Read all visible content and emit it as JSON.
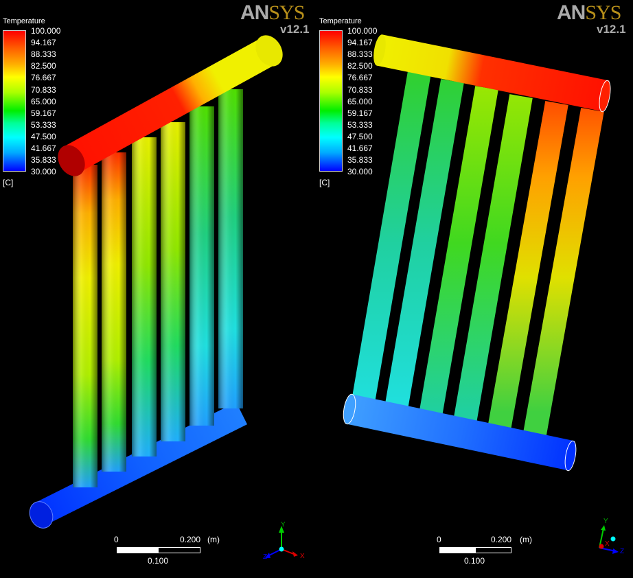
{
  "views": [
    {
      "legend": {
        "title": "Temperature",
        "ticks": [
          "100.000",
          "94.167",
          "88.333",
          "82.500",
          "76.667",
          "70.833",
          "65.000",
          "59.167",
          "53.333",
          "47.500",
          "41.667",
          "35.833",
          "30.000"
        ],
        "unit": "[C]"
      },
      "logo": {
        "brand_a": "AN",
        "brand_b": "SYS",
        "version": "v12.1"
      },
      "scale_bar": {
        "start": "0",
        "end": "0.200",
        "unit": "(m)",
        "mid": "0.100"
      },
      "triad": {
        "x": "X",
        "y": "Y",
        "z": "Z"
      }
    },
    {
      "legend": {
        "title": "Temperature",
        "ticks": [
          "100.000",
          "94.167",
          "88.333",
          "82.500",
          "76.667",
          "70.833",
          "65.000",
          "59.167",
          "53.333",
          "47.500",
          "41.667",
          "35.833",
          "30.000"
        ],
        "unit": "[C]"
      },
      "logo": {
        "brand_a": "AN",
        "brand_b": "SYS",
        "version": "v12.1"
      },
      "scale_bar": {
        "start": "0",
        "end": "0.200",
        "unit": "(m)",
        "mid": "0.100"
      },
      "triad": {
        "x": "X",
        "y": "Y",
        "z": "Z"
      }
    }
  ],
  "colors": {
    "hot": "#ff0000",
    "mid": "#ffff00",
    "warm": "#00dd00",
    "cool": "#00ffff",
    "cold": "#0000ff",
    "logo_gray": "#aaaaaa",
    "logo_gold": "#b8901a"
  }
}
